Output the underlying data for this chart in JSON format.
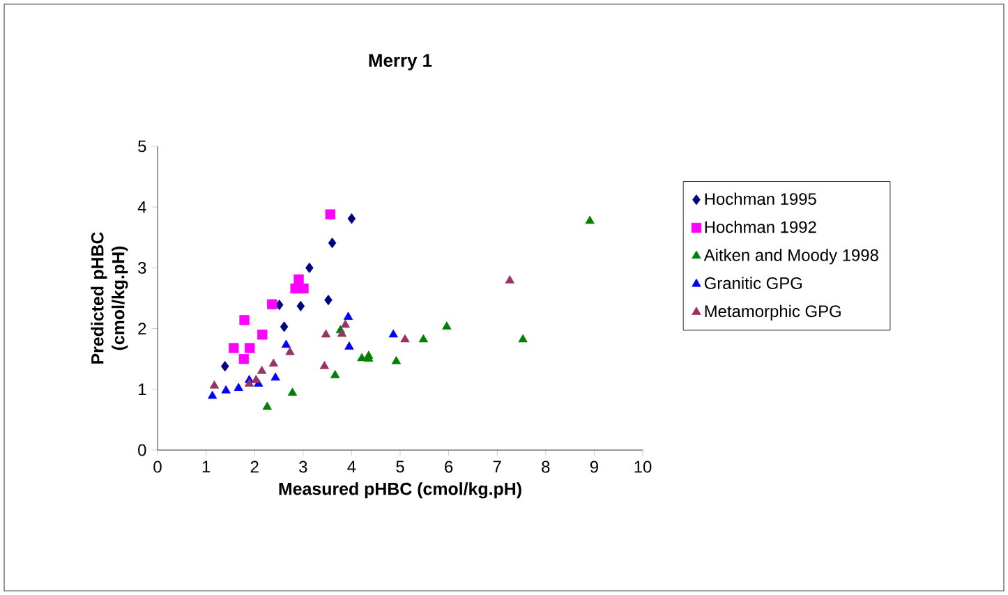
{
  "chart_data": {
    "type": "scatter",
    "title": "Merry 1",
    "xlabel": "Measured pHBC (cmol/kg.pH)",
    "ylabel": "Predicted pHBC (cmol/kg.pH)",
    "xlim": [
      0,
      10
    ],
    "xticks": [
      0,
      1,
      2,
      3,
      4,
      5,
      6,
      7,
      8,
      9,
      10
    ],
    "ylim": [
      0,
      5
    ],
    "yticks": [
      0,
      1,
      2,
      3,
      4,
      5
    ],
    "legend": "right",
    "series": [
      {
        "name": "Hochman 1995",
        "color": "#000080",
        "marker": "diamond",
        "x": [
          1.39,
          2.61,
          2.51,
          2.95,
          3.13,
          3.52,
          3.6,
          4.0
        ],
        "values": [
          1.38,
          2.03,
          2.39,
          2.37,
          3.0,
          2.47,
          3.41,
          3.81
        ]
      },
      {
        "name": "Hochman 1992",
        "color": "#ff00ff",
        "marker": "square",
        "x": [
          3.56,
          1.79,
          1.57,
          1.78,
          1.9,
          2.16,
          2.36,
          2.91,
          2.84,
          3.01
        ],
        "values": [
          3.88,
          2.14,
          1.68,
          1.5,
          1.68,
          1.9,
          2.4,
          2.81,
          2.66,
          2.66
        ]
      },
      {
        "name": "Aitken and Moody 1998",
        "color": "#008000",
        "marker": "triangle",
        "x": [
          2.26,
          2.78,
          3.66,
          3.77,
          4.21,
          4.35,
          4.35,
          4.92,
          5.48,
          5.96,
          7.53,
          8.91
        ],
        "values": [
          0.71,
          0.94,
          1.23,
          1.97,
          1.51,
          1.55,
          1.5,
          1.46,
          1.82,
          2.03,
          1.82,
          3.77
        ]
      },
      {
        "name": "Granitic GPG",
        "color": "#0000ff",
        "marker": "triangle",
        "x": [
          1.13,
          1.41,
          1.67,
          1.89,
          2.08,
          2.43,
          2.65,
          3.93,
          3.95,
          4.86
        ],
        "values": [
          0.89,
          0.98,
          1.02,
          1.15,
          1.09,
          1.19,
          1.73,
          2.19,
          1.7,
          1.9
        ]
      },
      {
        "name": "Metamorphic GPG",
        "color": "#993366",
        "marker": "triangle",
        "x": [
          1.17,
          1.89,
          2.03,
          2.15,
          2.39,
          2.73,
          3.44,
          3.47,
          3.8,
          3.87,
          5.1,
          7.26
        ],
        "values": [
          1.06,
          1.09,
          1.15,
          1.3,
          1.42,
          1.61,
          1.38,
          1.9,
          1.91,
          2.06,
          1.82,
          2.79
        ]
      }
    ]
  }
}
